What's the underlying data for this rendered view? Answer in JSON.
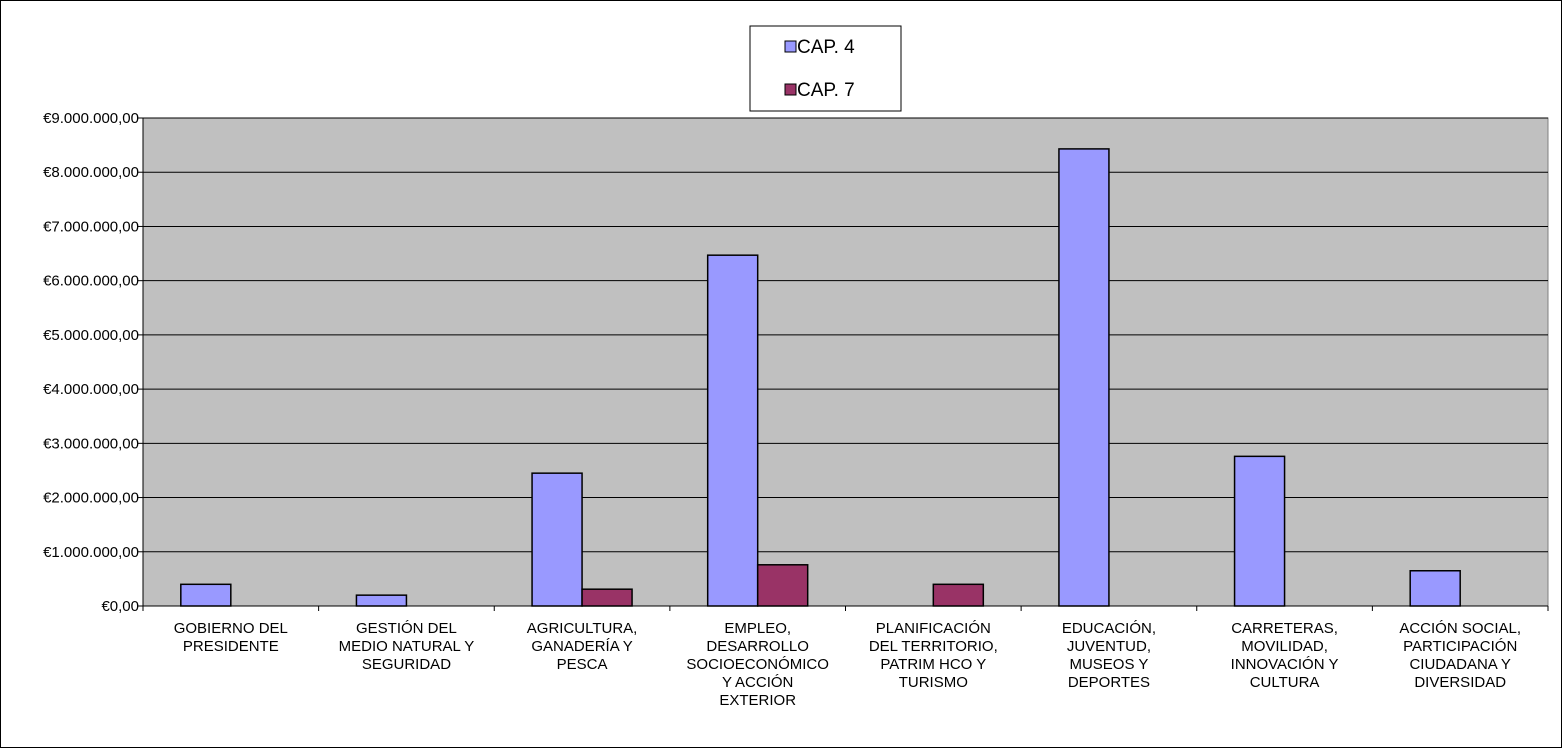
{
  "chart_data": {
    "type": "bar",
    "title": "",
    "xlabel": "",
    "ylabel": "",
    "ylim": [
      0,
      9000000
    ],
    "y_tick_step": 1000000,
    "y_ticks": [
      "€0,00",
      "€1.000.000,00",
      "€2.000.000,00",
      "€3.000.000,00",
      "€4.000.000,00",
      "€5.000.000,00",
      "€6.000.000,00",
      "€7.000.000,00",
      "€8.000.000,00",
      "€9.000.000,00"
    ],
    "grid": true,
    "legend_position": "top-center",
    "categories": [
      [
        "GOBIERNO DEL",
        "PRESIDENTE"
      ],
      [
        "GESTIÓN DEL",
        "MEDIO NATURAL Y",
        "SEGURIDAD"
      ],
      [
        "AGRICULTURA,",
        "GANADERÍA Y",
        "PESCA"
      ],
      [
        "EMPLEO,",
        "DESARROLLO",
        "SOCIOECONÓMICO",
        "Y ACCIÓN",
        "EXTERIOR"
      ],
      [
        "PLANIFICACIÓN",
        "DEL TERRITORIO,",
        "PATRIM HCO Y",
        "TURISMO"
      ],
      [
        "EDUCACIÓN,",
        "JUVENTUD,",
        "MUSEOS Y",
        "DEPORTES"
      ],
      [
        "CARRETERAS,",
        "MOVILIDAD,",
        "INNOVACIÓN Y",
        "CULTURA"
      ],
      [
        "ACCIÓN SOCIAL,",
        "PARTICIPACIÓN",
        "CIUDADANA Y",
        "DIVERSIDAD"
      ]
    ],
    "series": [
      {
        "name": "CAP. 4",
        "color": "#9999FF",
        "values": [
          400000,
          200000,
          2450000,
          6470000,
          0,
          8430000,
          2760000,
          650000
        ]
      },
      {
        "name": "CAP. 7",
        "color": "#993366",
        "values": [
          0,
          0,
          310000,
          760000,
          400000,
          0,
          0,
          0
        ]
      }
    ],
    "plot_background": "#C0C0C0"
  }
}
